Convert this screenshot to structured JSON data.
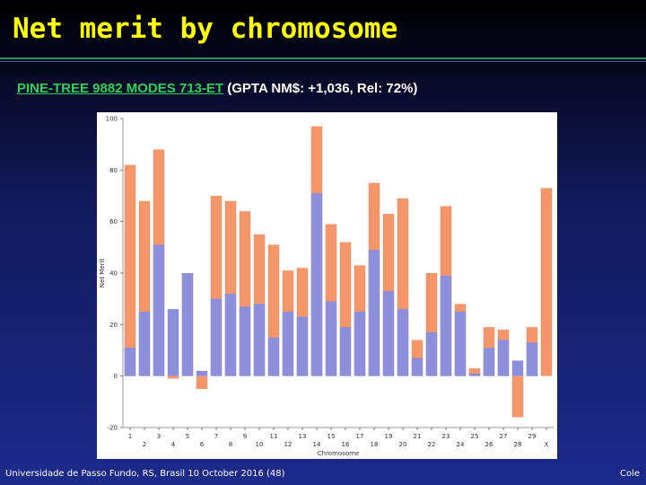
{
  "slide": {
    "title": "Net merit by chromosome",
    "subtitle_link": "PINE-TREE 9882 MODES 713-ET",
    "subtitle_rest": "(GPTA NM$: +1,036, Rel: 72%)",
    "footer_left": "Universidade de Passo Fundo, RS, Brasil 10 October 2016 (48)",
    "footer_right": "Cole",
    "colors": {
      "title": "#ffff00",
      "link": "#2fd05a",
      "bar_total": "#f4956a",
      "bar_part": "#8c8fdc"
    }
  },
  "chart_data": {
    "type": "bar",
    "xlabel": "Chromosome",
    "ylabel": "Net Merit",
    "ylim": [
      -20,
      100
    ],
    "yticks": [
      -20,
      0,
      20,
      40,
      60,
      80,
      100
    ],
    "x_tick_labels_top": [
      "1",
      "3",
      "5",
      "7",
      "9",
      "11",
      "13",
      "15",
      "17",
      "19",
      "21",
      "23",
      "25",
      "27",
      "29"
    ],
    "x_tick_labels_bottom": [
      "2",
      "4",
      "6",
      "8",
      "10",
      "12",
      "14",
      "16",
      "18",
      "20",
      "22",
      "24",
      "26",
      "28",
      "X"
    ],
    "categories": [
      "1",
      "2",
      "3",
      "4",
      "5",
      "6",
      "7",
      "8",
      "9",
      "10",
      "11",
      "12",
      "13",
      "14",
      "15",
      "16",
      "17",
      "18",
      "19",
      "20",
      "21",
      "22",
      "23",
      "24",
      "25",
      "26",
      "27",
      "28",
      "29",
      "X"
    ],
    "series": [
      {
        "values": [
          82,
          68,
          88,
          -1,
          40,
          -5,
          70,
          68,
          64,
          55,
          51,
          41,
          42,
          97,
          59,
          52,
          43,
          75,
          63,
          69,
          14,
          40,
          66,
          28,
          3,
          19,
          18,
          -16,
          19,
          73
        ]
      },
      {
        "values": [
          11,
          25,
          51,
          26,
          40,
          2,
          30,
          32,
          27,
          28,
          15,
          25,
          23,
          71,
          29,
          19,
          25,
          49,
          33,
          26,
          7,
          17,
          39,
          25,
          1,
          11,
          14,
          6,
          13,
          0
        ]
      }
    ]
  }
}
